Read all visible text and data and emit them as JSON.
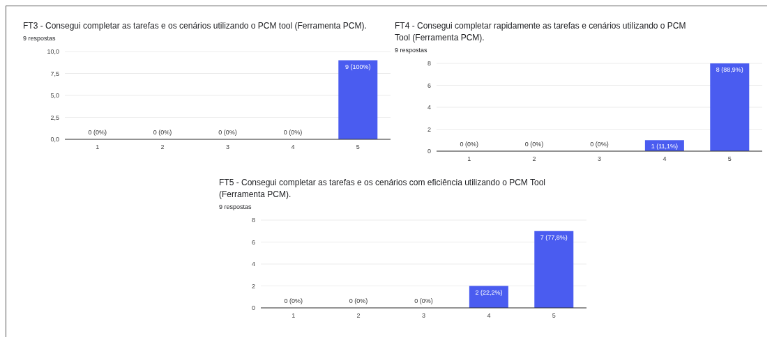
{
  "chart_data": [
    {
      "type": "bar",
      "title": "FT3 - Consegui completar as tarefas e os cenários utilizando o PCM tool (Ferramenta PCM).",
      "subtitle": "9 respostas",
      "categories": [
        "1",
        "2",
        "3",
        "4",
        "5"
      ],
      "values": [
        0,
        0,
        0,
        0,
        9
      ],
      "color": "#4a5cf0",
      "value_labels": [
        "0 (0%)",
        "0 (0%)",
        "0 (0%)",
        "0 (0%)",
        "9 (100%)"
      ],
      "ylim": [
        0,
        10
      ],
      "yticks": [
        {
          "value": 0,
          "label": "0,0"
        },
        {
          "value": 2.5,
          "label": "2,5"
        },
        {
          "value": 5,
          "label": "5,0"
        },
        {
          "value": 7.5,
          "label": "7,5"
        },
        {
          "value": 10,
          "label": "10,0"
        }
      ],
      "grid": "y",
      "legend": false
    },
    {
      "type": "bar",
      "title": "FT4 - Consegui completar rapidamente as tarefas e cenários utilizando o PCM Tool (Ferramenta PCM).",
      "subtitle": "9 respostas",
      "categories": [
        "1",
        "2",
        "3",
        "4",
        "5"
      ],
      "values": [
        0,
        0,
        0,
        1,
        8
      ],
      "color": "#4a5cf0",
      "value_labels": [
        "0 (0%)",
        "0 (0%)",
        "0 (0%)",
        "1 (11,1%)",
        "8 (88,9%)"
      ],
      "ylim": [
        0,
        8
      ],
      "yticks": [
        0,
        2,
        4,
        6,
        8
      ],
      "grid": "y",
      "legend": false
    },
    {
      "type": "bar",
      "title": "FT5 - Consegui completar as tarefas e os cenários com eficiência utilizando o PCM Tool (Ferramenta PCM).",
      "subtitle": "9 respostas",
      "categories": [
        "1",
        "2",
        "3",
        "4",
        "5"
      ],
      "values": [
        0,
        0,
        0,
        2,
        7
      ],
      "color": "#4a5cf0",
      "value_labels": [
        "0 (0%)",
        "0 (0%)",
        "0 (0%)",
        "2 (22,2%)",
        "7 (77,8%)"
      ],
      "ylim": [
        0,
        8
      ],
      "yticks": [
        0,
        2,
        4,
        6,
        8
      ],
      "grid": "y",
      "legend": false
    }
  ]
}
